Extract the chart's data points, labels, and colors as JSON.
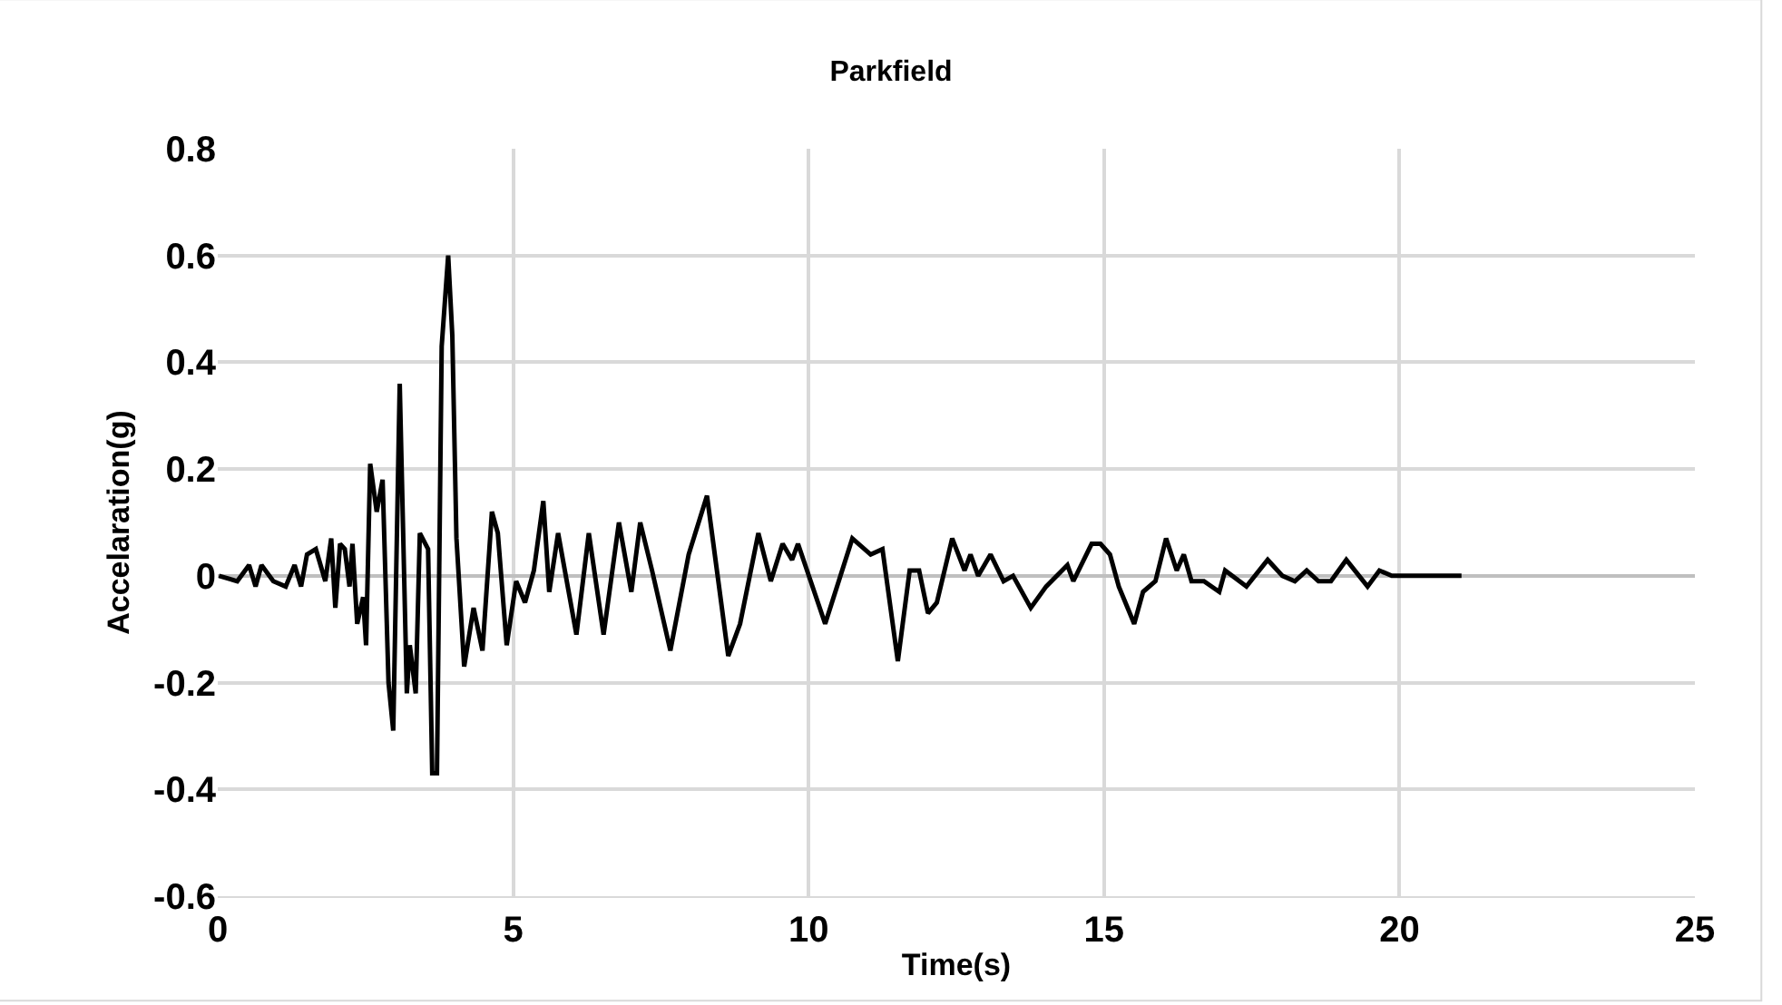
{
  "chart_data": {
    "type": "line",
    "title": "Parkfield",
    "xlabel": "Time(s)",
    "ylabel": "Accelaration(g)",
    "x": [
      0.02,
      0.33,
      0.53,
      0.64,
      0.74,
      0.94,
      1.15,
      1.3,
      1.41,
      1.51,
      1.66,
      1.82,
      1.92,
      1.99,
      2.07,
      2.15,
      2.23,
      2.28,
      2.36,
      2.46,
      2.51,
      2.58,
      2.69,
      2.79,
      2.89,
      2.97,
      3.08,
      3.2,
      3.25,
      3.35,
      3.42,
      3.56,
      3.63,
      3.71,
      3.79,
      3.9,
      3.97,
      4.04,
      4.17,
      4.33,
      4.48,
      4.64,
      4.74,
      4.89,
      5.05,
      5.2,
      5.35,
      5.51,
      5.61,
      5.76,
      6.07,
      6.28,
      6.53,
      6.79,
      7.0,
      7.15,
      7.35,
      7.66,
      7.97,
      8.28,
      8.64,
      8.84,
      9.15,
      9.36,
      9.56,
      9.72,
      9.82,
      10.28,
      10.74,
      11.05,
      11.25,
      11.51,
      11.71,
      11.87,
      12.02,
      12.17,
      12.43,
      12.64,
      12.74,
      12.87,
      13.08,
      13.3,
      13.46,
      13.76,
      14.02,
      14.38,
      14.48,
      14.79,
      14.94,
      15.1,
      15.25,
      15.51,
      15.66,
      15.87,
      16.05,
      16.23,
      16.35,
      16.48,
      16.69,
      16.95,
      17.05,
      17.41,
      17.77,
      18.02,
      18.23,
      18.43,
      18.63,
      18.84,
      19.1,
      19.46,
      19.66,
      19.87,
      20.28,
      20.69,
      21.05
    ],
    "series": [
      {
        "color": "#000000",
        "values": [
          0,
          -0.01,
          0.02,
          -0.02,
          0.02,
          -0.01,
          -0.02,
          0.02,
          -0.02,
          0.04,
          0.05,
          -0.01,
          0.07,
          -0.06,
          0.06,
          0.05,
          -0.02,
          0.06,
          -0.09,
          -0.04,
          -0.13,
          0.21,
          0.12,
          0.18,
          -0.2,
          -0.29,
          0.36,
          -0.22,
          -0.13,
          -0.22,
          0.08,
          0.05,
          -0.37,
          -0.37,
          0.43,
          0.6,
          0.45,
          0.07,
          -0.17,
          -0.06,
          -0.14,
          0.12,
          0.08,
          -0.13,
          -0.01,
          -0.05,
          0.01,
          0.14,
          -0.03,
          0.08,
          -0.11,
          0.08,
          -0.11,
          0.1,
          -0.03,
          0.1,
          0.01,
          -0.14,
          0.04,
          0.15,
          -0.15,
          -0.09,
          0.08,
          -0.01,
          0.06,
          0.03,
          0.06,
          -0.09,
          0.07,
          0.04,
          0.05,
          -0.16,
          0.01,
          0.01,
          -0.07,
          -0.05,
          0.07,
          0.01,
          0.04,
          0,
          0.04,
          -0.01,
          0,
          -0.06,
          -0.02,
          0.02,
          -0.01,
          0.06,
          0.06,
          0.04,
          -0.02,
          -0.09,
          -0.03,
          -0.01,
          0.07,
          0.01,
          0.04,
          -0.01,
          -0.01,
          -0.03,
          0.01,
          -0.02,
          0.03,
          0,
          -0.01,
          0.01,
          -0.01,
          -0.01,
          0.03,
          -0.02,
          0.01,
          0,
          0,
          0,
          0
        ]
      }
    ],
    "xlim": [
      0,
      25
    ],
    "xticks": [
      0,
      5,
      10,
      15,
      20,
      25
    ],
    "ylim": [
      -0.6,
      0.8
    ],
    "yticks": [
      -0.6,
      -0.4,
      -0.2,
      0,
      0.2,
      0.4,
      0.6,
      0.8
    ],
    "grid": true,
    "marker": "none",
    "line_style": "solid"
  }
}
